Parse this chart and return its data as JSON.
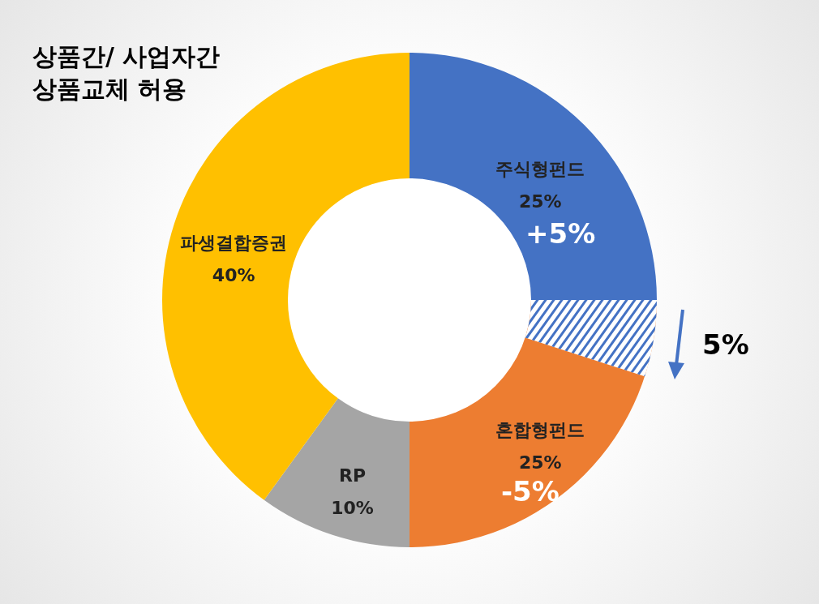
{
  "chart_data": {
    "type": "donut",
    "title": "상품간/ 사업자간\n상품교체 허용",
    "categories": [
      "주식형펀드",
      "혼합형펀드",
      "RP",
      "파생결합증권"
    ],
    "values": [
      25,
      25,
      10,
      40
    ],
    "colors": [
      "#4472c4",
      "#ed7d31",
      "#a5a5a5",
      "#ffc000"
    ],
    "value_labels": [
      "25%",
      "25%",
      "10%",
      "40%"
    ],
    "annotations": [
      "+5%",
      "5%",
      "-5%"
    ]
  }
}
